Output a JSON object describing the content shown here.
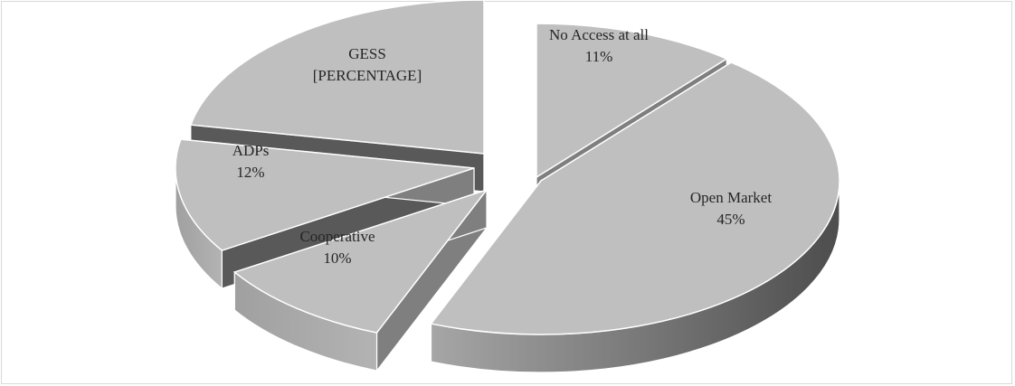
{
  "chart_data": {
    "type": "pie",
    "style": "3d-exploded",
    "title": "",
    "slices": [
      {
        "name": "No Access at all",
        "value": 11,
        "label": "11%"
      },
      {
        "name": "Open Market",
        "value": 45,
        "label": "45%"
      },
      {
        "name": "Cooperative",
        "value": 10,
        "label": "10%"
      },
      {
        "name": "ADPs",
        "value": 12,
        "label": "12%"
      },
      {
        "name": "GESS",
        "value": 22,
        "label": "[PERCENTAGE]"
      }
    ],
    "colors": {
      "top": "#bfbfbf",
      "side_light": "#a6a6a6",
      "side_dark": "#595959",
      "cut_face": "#7f7f7f",
      "edge": "#ffffff",
      "border": "#d9d9d9"
    }
  }
}
